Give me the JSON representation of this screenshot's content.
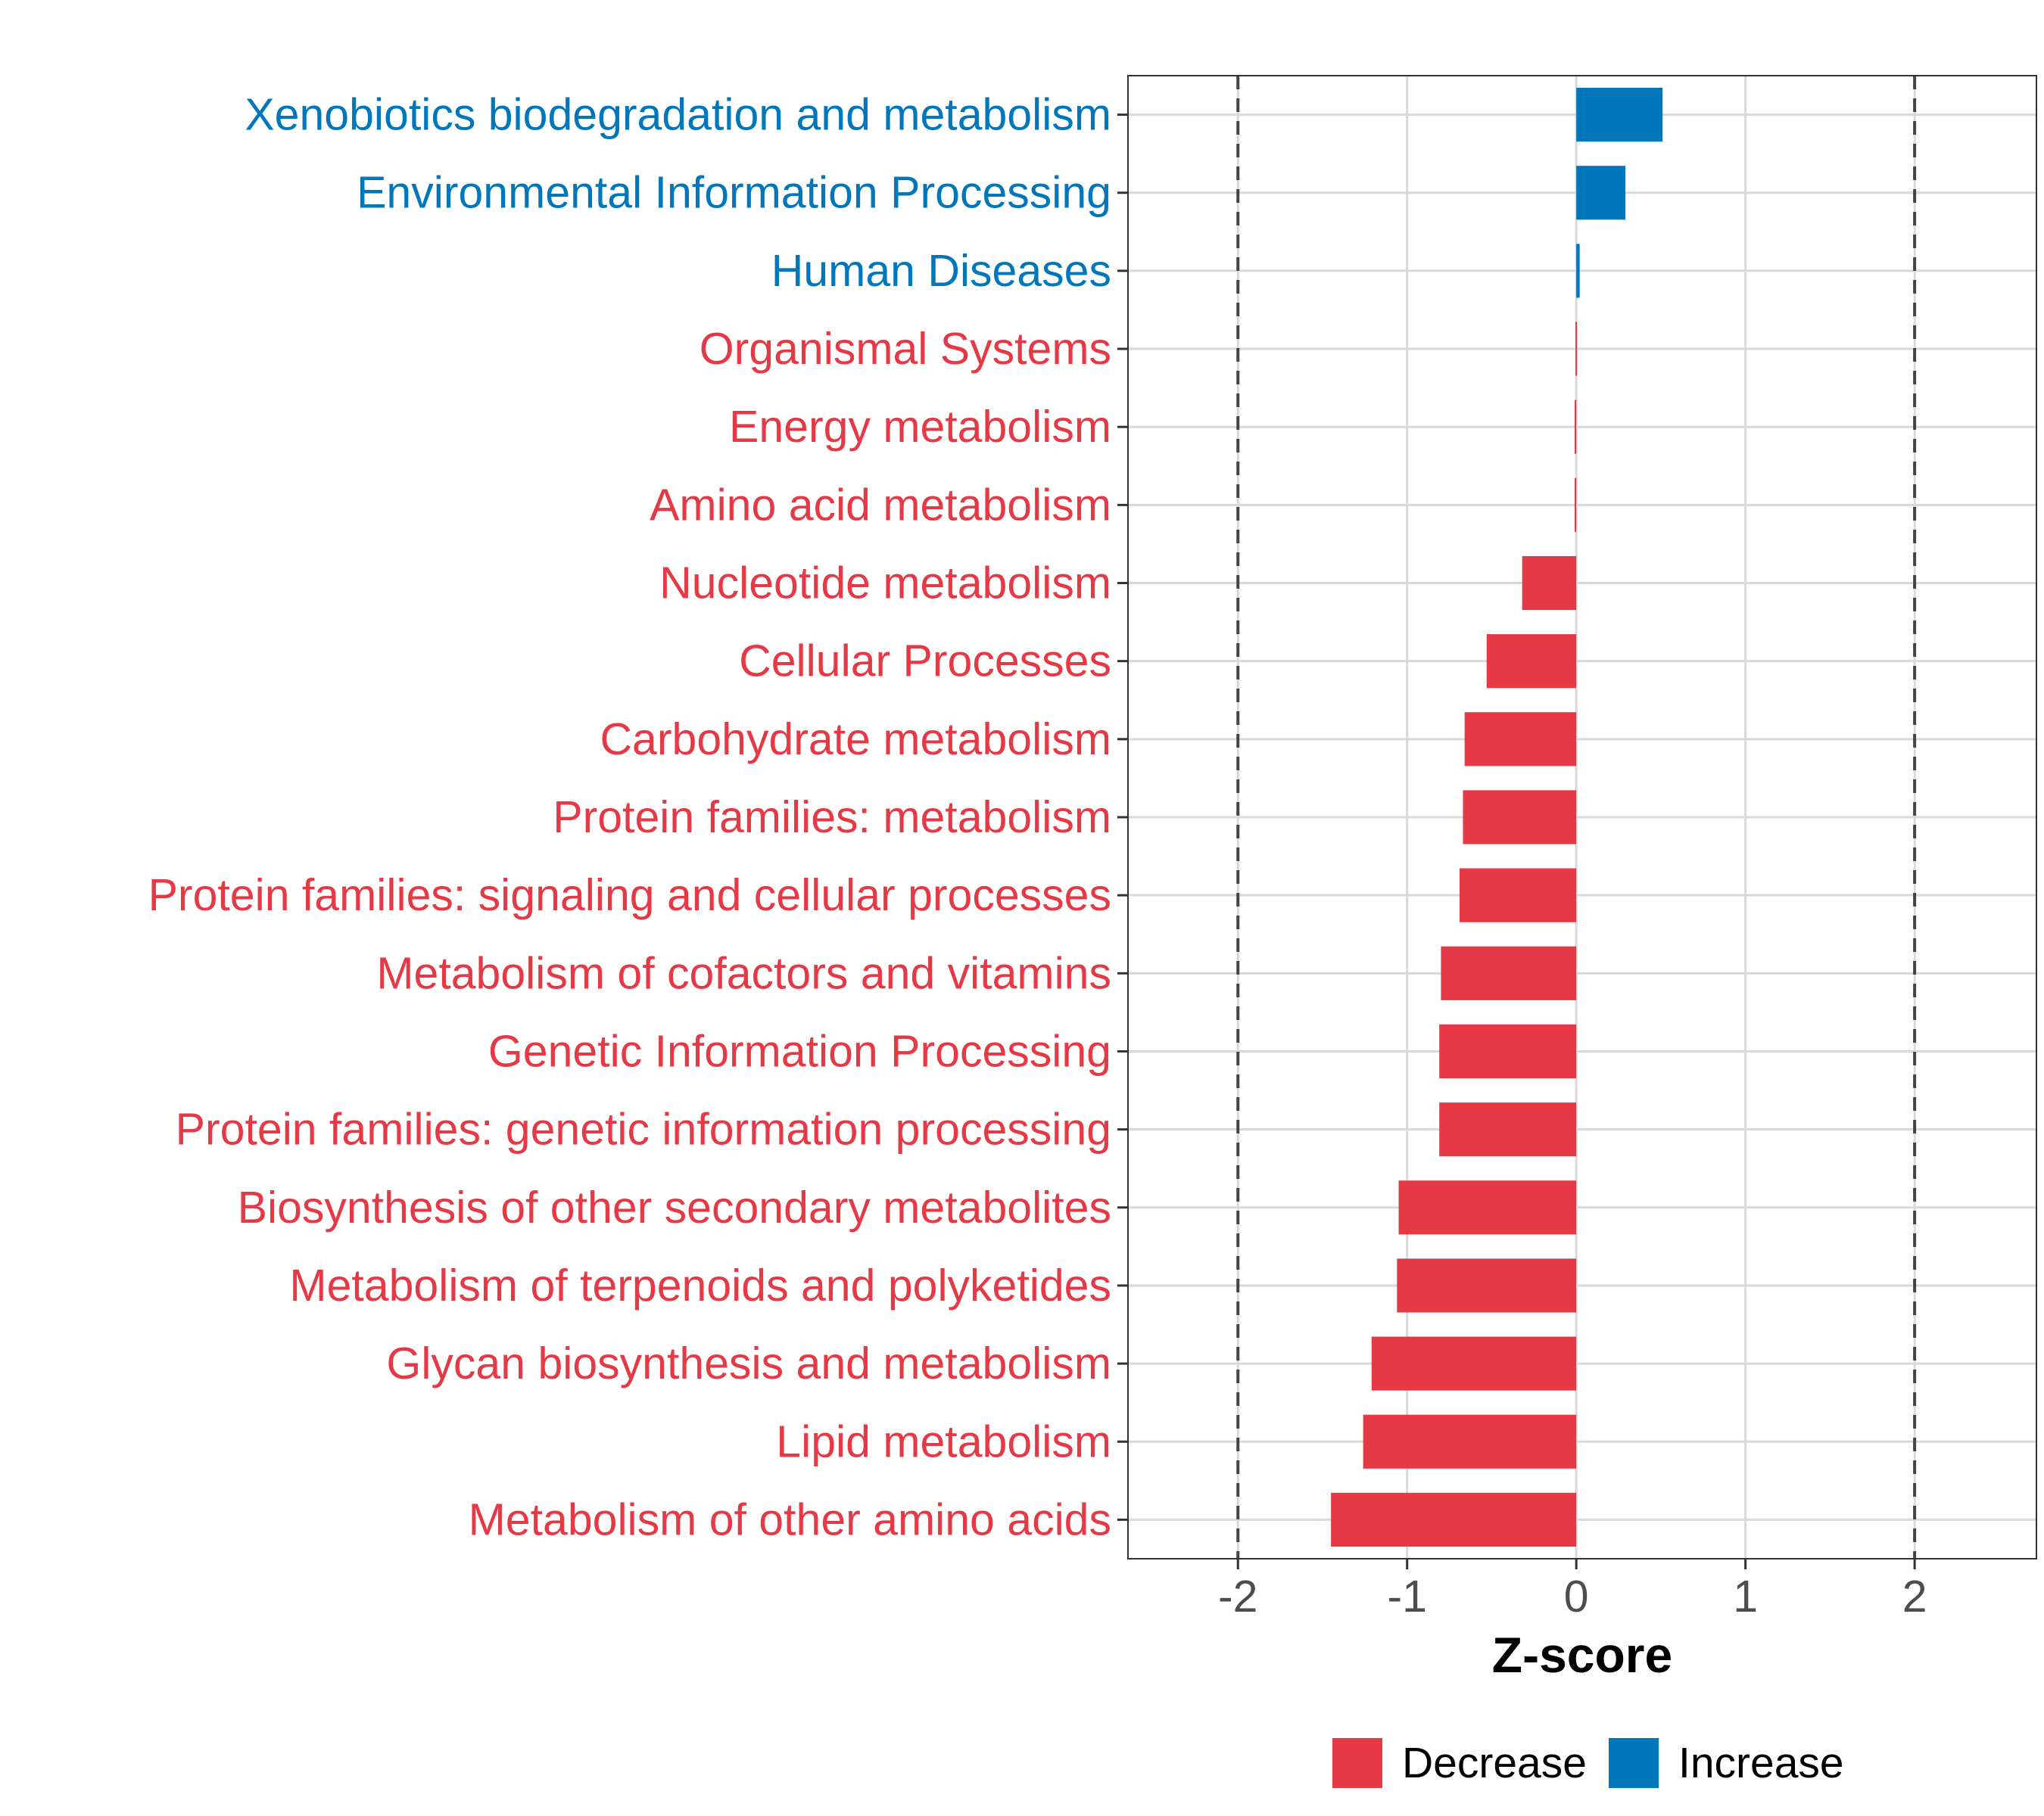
{
  "chart_data": {
    "type": "bar",
    "orientation": "horizontal",
    "title": "",
    "xlabel": "Z-score",
    "ylabel": "",
    "xlim": [
      -2.65,
      2.72
    ],
    "x_ticks": [
      -2,
      -1,
      0,
      1,
      2
    ],
    "x_tick_labels": [
      "-2",
      "-1",
      "0",
      "1",
      "2"
    ],
    "threshold_lines": [
      -2,
      2
    ],
    "grid": true,
    "legend_position": "bottom",
    "categories": [
      "Xenobiotics biodegradation and metabolism",
      "Environmental Information Processing",
      "Human Diseases",
      "Organismal Systems",
      "Energy metabolism",
      "Amino acid metabolism",
      "Nucleotide metabolism",
      "Cellular Processes",
      "Carbohydrate metabolism",
      "Protein families: metabolism",
      "Protein families: signaling and cellular processes",
      "Metabolism of cofactors and vitamins",
      "Genetic Information Processing",
      "Protein families: genetic information processing",
      "Biosynthesis of other secondary metabolites",
      "Metabolism of terpenoids and polyketides",
      "Glycan biosynthesis and metabolism",
      "Lipid metabolism",
      "Metabolism of other amino acids"
    ],
    "values": [
      0.51,
      0.29,
      0.02,
      -0.005,
      -0.01,
      -0.01,
      -0.32,
      -0.53,
      -0.66,
      -0.67,
      -0.69,
      -0.8,
      -0.81,
      -0.81,
      -1.05,
      -1.06,
      -1.21,
      -1.26,
      -1.45
    ],
    "groups": [
      "Increase",
      "Increase",
      "Increase",
      "Decrease",
      "Decrease",
      "Decrease",
      "Decrease",
      "Decrease",
      "Decrease",
      "Decrease",
      "Decrease",
      "Decrease",
      "Decrease",
      "Decrease",
      "Decrease",
      "Decrease",
      "Decrease",
      "Decrease",
      "Decrease"
    ],
    "legend": [
      {
        "label": "Decrease",
        "color": "#e63946"
      },
      {
        "label": "Increase",
        "color": "#0077bb"
      }
    ]
  }
}
